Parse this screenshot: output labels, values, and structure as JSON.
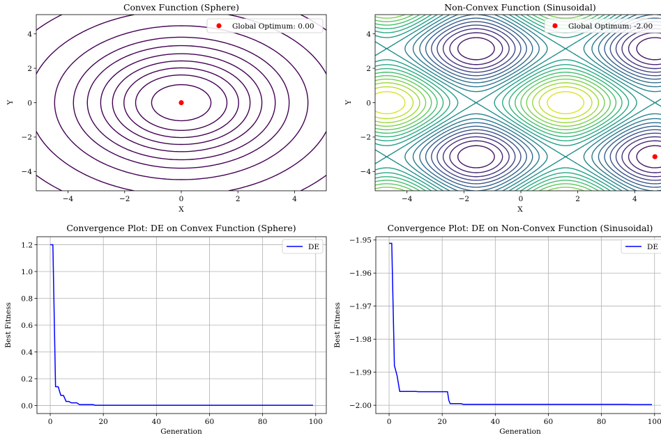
{
  "chart_data": [
    {
      "type": "contour",
      "title": "Convex Function (Sphere)",
      "xlabel": "X",
      "ylabel": "Y",
      "function": "x^2 + y^2",
      "xlim": [
        -5.12,
        5.12
      ],
      "ylim": [
        -5.12,
        5.12
      ],
      "xticks": [
        -4,
        -2,
        0,
        2,
        4
      ],
      "yticks": [
        -4,
        -2,
        0,
        2,
        4
      ],
      "levels": [
        1.1,
        2.6,
        4.1,
        5.9,
        8.1,
        11,
        14.5,
        20,
        29,
        44,
        68
      ],
      "line_color": "#440154",
      "optimum": {
        "x": 0,
        "y": 0,
        "color": "#ff0000"
      },
      "legend": {
        "label": "Global Optimum: 0.00",
        "position": "upper right"
      },
      "grid": false
    },
    {
      "type": "contour",
      "title": "Non-Convex Function (Sinusoidal)",
      "xlabel": "X",
      "ylabel": "Y",
      "function": "sin(x) + cos(y)",
      "xlim": [
        -5.12,
        5.12
      ],
      "ylim": [
        -5.12,
        5.12
      ],
      "xticks": [
        -4,
        -2,
        0,
        2,
        4
      ],
      "yticks": [
        -4,
        -2,
        0,
        2,
        4
      ],
      "levels": [
        -1.8,
        -1.6,
        -1.4,
        -1.2,
        -1.0,
        -0.8,
        -0.6,
        -0.4,
        -0.2,
        0.0,
        0.2,
        0.4,
        0.6,
        0.8,
        1.0,
        1.2,
        1.4,
        1.6,
        1.8
      ],
      "colormap": "viridis",
      "optimum": {
        "x": 4.71,
        "y": -3.14,
        "color": "#ff0000"
      },
      "legend": {
        "label": "Global Optimum: -2.00",
        "position": "upper right"
      },
      "grid": false
    },
    {
      "type": "line",
      "title": "Convergence Plot: DE on Convex Function (Sphere)",
      "xlabel": "Generation",
      "ylabel": "Best Fitness",
      "xlim": [
        -5,
        104
      ],
      "ylim": [
        -0.06,
        1.26
      ],
      "xticks": [
        0,
        20,
        40,
        60,
        80,
        100
      ],
      "yticks": [
        0.0,
        0.2,
        0.4,
        0.6,
        0.8,
        1.0,
        1.2
      ],
      "ytick_labels": [
        "0.0",
        "0.2",
        "0.4",
        "0.6",
        "0.8",
        "1.0",
        "1.2"
      ],
      "grid": true,
      "legend": {
        "position": "upper right"
      },
      "series": [
        {
          "name": "DE",
          "color": "#0000ff",
          "x": [
            0,
            1,
            2,
            3,
            4,
            5,
            6,
            7,
            8,
            9,
            10,
            11,
            12,
            13,
            14,
            15,
            16,
            17,
            18,
            99
          ],
          "y": [
            1.2,
            1.2,
            0.14,
            0.14,
            0.075,
            0.075,
            0.03,
            0.03,
            0.02,
            0.02,
            0.02,
            0.007,
            0.007,
            0.007,
            0.007,
            0.007,
            0.007,
            0.002,
            0.002,
            0.002
          ]
        }
      ]
    },
    {
      "type": "line",
      "title": "Convergence Plot: DE on Non-Convex Function (Sinusoidal)",
      "xlabel": "Generation",
      "ylabel": "Best Fitness",
      "xlim": [
        -5,
        104
      ],
      "ylim": [
        -2.0025,
        -1.949
      ],
      "xticks": [
        0,
        20,
        40,
        60,
        80,
        100
      ],
      "yticks": [
        -2.0,
        -1.99,
        -1.98,
        -1.97,
        -1.96,
        -1.95
      ],
      "ytick_labels": [
        "−2.00",
        "−1.99",
        "−1.98",
        "−1.97",
        "−1.96",
        "−1.95"
      ],
      "grid": true,
      "legend": {
        "position": "upper right"
      },
      "series": [
        {
          "name": "DE",
          "color": "#0000ff",
          "x": [
            0,
            0.5,
            1,
            2,
            3,
            4,
            5,
            10,
            11,
            22,
            22.5,
            23,
            27,
            28,
            90,
            91,
            99
          ],
          "y": [
            -1.951,
            -1.951,
            -1.951,
            -1.988,
            -1.991,
            -1.9958,
            -1.9958,
            -1.9958,
            -1.9959,
            -1.9959,
            -1.9985,
            -1.9995,
            -1.9995,
            -1.9997,
            -1.9997,
            -1.9998,
            -1.9998
          ]
        }
      ]
    }
  ]
}
